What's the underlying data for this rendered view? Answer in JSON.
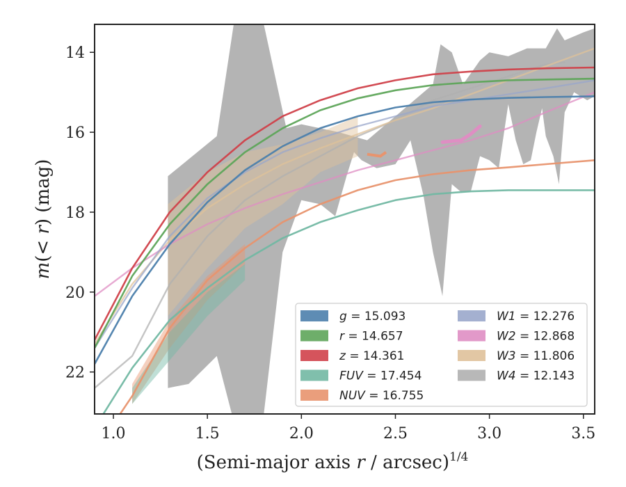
{
  "chart_data": {
    "type": "line",
    "title": "",
    "xlabel": {
      "base": "(Semi-major axis ",
      "var": "r",
      "mid": " / arcsec)",
      "sup": "1/4"
    },
    "ylabel": {
      "var_m": "m",
      "open": "(",
      "lt": "< ",
      "var_r": "r",
      "close": ")",
      "unit": " (mag)"
    },
    "xlim": [
      0.9,
      3.56
    ],
    "ylim": [
      23.05,
      13.3
    ],
    "y_inverted": true,
    "grid": false,
    "legend_position": "lower-right",
    "xticks": [
      {
        "value": 1.0,
        "label": "1.0"
      },
      {
        "value": 1.5,
        "label": "1.5"
      },
      {
        "value": 2.0,
        "label": "2.0"
      },
      {
        "value": 2.5,
        "label": "2.5"
      },
      {
        "value": 3.0,
        "label": "3.0"
      },
      {
        "value": 3.5,
        "label": "3.5"
      }
    ],
    "yticks": [
      {
        "value": 14,
        "label": "14"
      },
      {
        "value": 16,
        "label": "16"
      },
      {
        "value": 18,
        "label": "18"
      },
      {
        "value": 20,
        "label": "20"
      },
      {
        "value": 22,
        "label": "22"
      }
    ],
    "series": [
      {
        "key": "W4",
        "var": "W4",
        "eq": " = 12.143",
        "color": "#b0b0b0",
        "legend_column": 1,
        "band_upper": [
          [
            1.29,
            17.1
          ],
          [
            1.55,
            16.1
          ],
          [
            1.64,
            13.3
          ],
          [
            1.8,
            13.3
          ],
          [
            1.92,
            15.9
          ],
          [
            2.0,
            15.8
          ],
          [
            2.2,
            16.0
          ],
          [
            2.35,
            16.2
          ],
          [
            2.5,
            15.6
          ],
          [
            2.6,
            15.2
          ],
          [
            2.7,
            14.8
          ],
          [
            2.74,
            13.8
          ],
          [
            2.8,
            14.0
          ],
          [
            2.86,
            14.8
          ],
          [
            2.95,
            14.2
          ],
          [
            3.0,
            14.0
          ],
          [
            3.1,
            14.1
          ],
          [
            3.2,
            13.9
          ],
          [
            3.3,
            13.9
          ],
          [
            3.36,
            13.4
          ],
          [
            3.4,
            13.7
          ],
          [
            3.45,
            13.6
          ],
          [
            3.5,
            13.5
          ],
          [
            3.56,
            13.4
          ]
        ],
        "band_lower": [
          [
            3.56,
            15.1
          ],
          [
            3.52,
            15.2
          ],
          [
            3.45,
            15.0
          ],
          [
            3.4,
            15.5
          ],
          [
            3.37,
            17.3
          ],
          [
            3.34,
            16.6
          ],
          [
            3.3,
            16.1
          ],
          [
            3.28,
            15.4
          ],
          [
            3.25,
            16.0
          ],
          [
            3.22,
            16.7
          ],
          [
            3.18,
            16.8
          ],
          [
            3.14,
            16.2
          ],
          [
            3.1,
            15.3
          ],
          [
            3.05,
            16.9
          ],
          [
            3.0,
            16.7
          ],
          [
            2.95,
            16.6
          ],
          [
            2.9,
            17.5
          ],
          [
            2.85,
            17.5
          ],
          [
            2.8,
            17.3
          ],
          [
            2.75,
            20.1
          ],
          [
            2.7,
            19.0
          ],
          [
            2.65,
            17.6
          ],
          [
            2.58,
            16.2
          ],
          [
            2.5,
            16.8
          ],
          [
            2.4,
            16.9
          ],
          [
            2.32,
            16.7
          ],
          [
            2.28,
            16.5
          ],
          [
            2.24,
            17.1
          ],
          [
            2.18,
            18.1
          ],
          [
            2.1,
            17.8
          ],
          [
            2.0,
            17.7
          ],
          [
            1.9,
            19.0
          ],
          [
            1.8,
            23.05
          ],
          [
            1.63,
            23.05
          ],
          [
            1.55,
            21.6
          ],
          [
            1.4,
            22.3
          ],
          [
            1.29,
            22.4
          ]
        ],
        "line": [
          [
            0.9,
            22.4
          ],
          [
            1.1,
            21.6
          ],
          [
            1.3,
            19.8
          ],
          [
            1.5,
            18.6
          ],
          [
            1.7,
            17.7
          ],
          [
            1.9,
            17.1
          ],
          [
            2.1,
            16.6
          ],
          [
            2.3,
            16.1
          ],
          [
            2.5,
            15.7
          ],
          [
            2.7,
            15.2
          ],
          [
            2.9,
            14.9
          ],
          [
            3.1,
            14.6
          ],
          [
            3.3,
            14.3
          ],
          [
            3.4,
            14.25
          ]
        ]
      },
      {
        "key": "W3",
        "var": "W3",
        "eq": " = 11.806",
        "color": "#dfc19a",
        "legend_column": 1,
        "line": [
          [
            0.9,
            21.3
          ],
          [
            1.1,
            19.8
          ],
          [
            1.3,
            18.7
          ],
          [
            1.5,
            17.9
          ],
          [
            1.7,
            17.3
          ],
          [
            1.9,
            16.8
          ],
          [
            2.1,
            16.4
          ],
          [
            2.3,
            16.05
          ],
          [
            2.5,
            15.7
          ],
          [
            2.7,
            15.4
          ],
          [
            2.9,
            15.05
          ],
          [
            3.1,
            14.7
          ],
          [
            3.3,
            14.35
          ],
          [
            3.56,
            13.9
          ]
        ],
        "band_upper": [
          [
            1.29,
            17.8
          ],
          [
            1.5,
            17.0
          ],
          [
            1.7,
            16.5
          ],
          [
            1.9,
            16.3
          ],
          [
            2.1,
            16.0
          ],
          [
            2.3,
            15.6
          ]
        ],
        "band_lower": [
          [
            2.3,
            16.6
          ],
          [
            2.1,
            17.0
          ],
          [
            1.9,
            17.8
          ],
          [
            1.7,
            18.4
          ],
          [
            1.5,
            19.4
          ],
          [
            1.29,
            20.6
          ]
        ]
      },
      {
        "key": "W2",
        "var": "W2",
        "eq": " = 12.868",
        "color": "#df8ec3",
        "legend_column": 1,
        "line": [
          [
            0.9,
            20.1
          ],
          [
            1.1,
            19.4
          ],
          [
            1.3,
            18.8
          ],
          [
            1.5,
            18.3
          ],
          [
            1.7,
            17.9
          ],
          [
            1.9,
            17.55
          ],
          [
            2.1,
            17.25
          ],
          [
            2.3,
            16.95
          ],
          [
            2.5,
            16.7
          ],
          [
            2.7,
            16.45
          ],
          [
            2.9,
            16.2
          ],
          [
            3.1,
            15.9
          ],
          [
            3.3,
            15.5
          ],
          [
            3.56,
            15.0
          ]
        ],
        "thick": [
          [
            2.75,
            16.25
          ],
          [
            2.85,
            16.2
          ],
          [
            2.9,
            16.05
          ],
          [
            2.95,
            15.85
          ]
        ]
      },
      {
        "key": "W1",
        "var": "W1",
        "eq": " = 12.276",
        "color": "#9aa7cb",
        "legend_column": 1,
        "line": [
          [
            0.9,
            21.4
          ],
          [
            1.1,
            19.9
          ],
          [
            1.3,
            18.6
          ],
          [
            1.5,
            17.65
          ],
          [
            1.7,
            17.0
          ],
          [
            1.9,
            16.5
          ],
          [
            2.1,
            16.15
          ],
          [
            2.3,
            15.85
          ],
          [
            2.5,
            15.6
          ],
          [
            2.7,
            15.35
          ],
          [
            2.9,
            15.2
          ],
          [
            3.1,
            15.05
          ],
          [
            3.3,
            14.9
          ],
          [
            3.56,
            14.7
          ]
        ]
      },
      {
        "key": "NUV",
        "var": "NUV",
        "eq": " = 16.755",
        "color": "#e8946e",
        "legend_column": 0,
        "line": [
          [
            0.9,
            24.0
          ],
          [
            1.1,
            22.6
          ],
          [
            1.3,
            20.9
          ],
          [
            1.5,
            19.7
          ],
          [
            1.7,
            18.9
          ],
          [
            1.9,
            18.25
          ],
          [
            2.1,
            17.8
          ],
          [
            2.3,
            17.45
          ],
          [
            2.5,
            17.2
          ],
          [
            2.7,
            17.05
          ],
          [
            2.9,
            16.95
          ],
          [
            3.1,
            16.88
          ],
          [
            3.3,
            16.8
          ],
          [
            3.56,
            16.7
          ]
        ],
        "band_upper": [
          [
            1.1,
            22.3
          ],
          [
            1.3,
            20.7
          ],
          [
            1.5,
            19.6
          ],
          [
            1.7,
            18.8
          ]
        ],
        "band_lower": [
          [
            1.7,
            19.3
          ],
          [
            1.5,
            20.2
          ],
          [
            1.3,
            21.4
          ],
          [
            1.1,
            22.8
          ]
        ],
        "extra": [
          [
            2.35,
            16.55
          ],
          [
            2.42,
            16.6
          ],
          [
            2.45,
            16.5
          ]
        ]
      },
      {
        "key": "FUV",
        "var": "FUV",
        "eq": " = 17.454",
        "color": "#72b8a3",
        "legend_column": 0,
        "line": [
          [
            0.9,
            23.4
          ],
          [
            1.1,
            21.9
          ],
          [
            1.3,
            20.7
          ],
          [
            1.5,
            19.9
          ],
          [
            1.7,
            19.2
          ],
          [
            1.9,
            18.65
          ],
          [
            2.1,
            18.25
          ],
          [
            2.3,
            17.95
          ],
          [
            2.5,
            17.7
          ],
          [
            2.7,
            17.55
          ],
          [
            2.9,
            17.48
          ],
          [
            3.1,
            17.45
          ],
          [
            3.33,
            17.45
          ],
          [
            3.56,
            17.45
          ]
        ],
        "band_upper": [
          [
            1.1,
            22.4
          ],
          [
            1.3,
            21.0
          ],
          [
            1.5,
            20.0
          ],
          [
            1.7,
            19.3
          ]
        ],
        "band_lower": [
          [
            1.7,
            19.7
          ],
          [
            1.5,
            20.6
          ],
          [
            1.3,
            21.7
          ],
          [
            1.1,
            22.8
          ]
        ]
      },
      {
        "key": "g",
        "var": "g",
        "eq": " = 15.093",
        "color": "#4c7fac",
        "legend_column": 0,
        "line": [
          [
            0.9,
            21.8
          ],
          [
            1.1,
            20.1
          ],
          [
            1.3,
            18.8
          ],
          [
            1.5,
            17.75
          ],
          [
            1.7,
            16.95
          ],
          [
            1.9,
            16.35
          ],
          [
            2.1,
            15.9
          ],
          [
            2.3,
            15.6
          ],
          [
            2.5,
            15.38
          ],
          [
            2.7,
            15.25
          ],
          [
            2.9,
            15.18
          ],
          [
            3.1,
            15.14
          ],
          [
            3.3,
            15.12
          ],
          [
            3.56,
            15.1
          ]
        ]
      },
      {
        "key": "r",
        "var": "r",
        "eq": " = 14.657",
        "color": "#5ea55a",
        "legend_column": 0,
        "line": [
          [
            0.9,
            21.4
          ],
          [
            1.1,
            19.6
          ],
          [
            1.3,
            18.3
          ],
          [
            1.5,
            17.3
          ],
          [
            1.7,
            16.5
          ],
          [
            1.9,
            15.9
          ],
          [
            2.1,
            15.45
          ],
          [
            2.3,
            15.15
          ],
          [
            2.5,
            14.95
          ],
          [
            2.7,
            14.82
          ],
          [
            2.9,
            14.75
          ],
          [
            3.1,
            14.7
          ],
          [
            3.3,
            14.68
          ],
          [
            3.56,
            14.66
          ]
        ]
      },
      {
        "key": "z",
        "var": "z",
        "eq": " = 14.361",
        "color": "#d0414a",
        "legend_column": 0,
        "line": [
          [
            0.9,
            21.2
          ],
          [
            1.1,
            19.4
          ],
          [
            1.3,
            18.0
          ],
          [
            1.5,
            17.0
          ],
          [
            1.7,
            16.2
          ],
          [
            1.9,
            15.6
          ],
          [
            2.1,
            15.2
          ],
          [
            2.3,
            14.9
          ],
          [
            2.5,
            14.7
          ],
          [
            2.7,
            14.55
          ],
          [
            2.9,
            14.48
          ],
          [
            3.1,
            14.43
          ],
          [
            3.3,
            14.4
          ],
          [
            3.56,
            14.38
          ]
        ]
      }
    ],
    "legend_order": [
      "g",
      "r",
      "z",
      "FUV",
      "NUV",
      "W1",
      "W2",
      "W3",
      "W4"
    ]
  }
}
